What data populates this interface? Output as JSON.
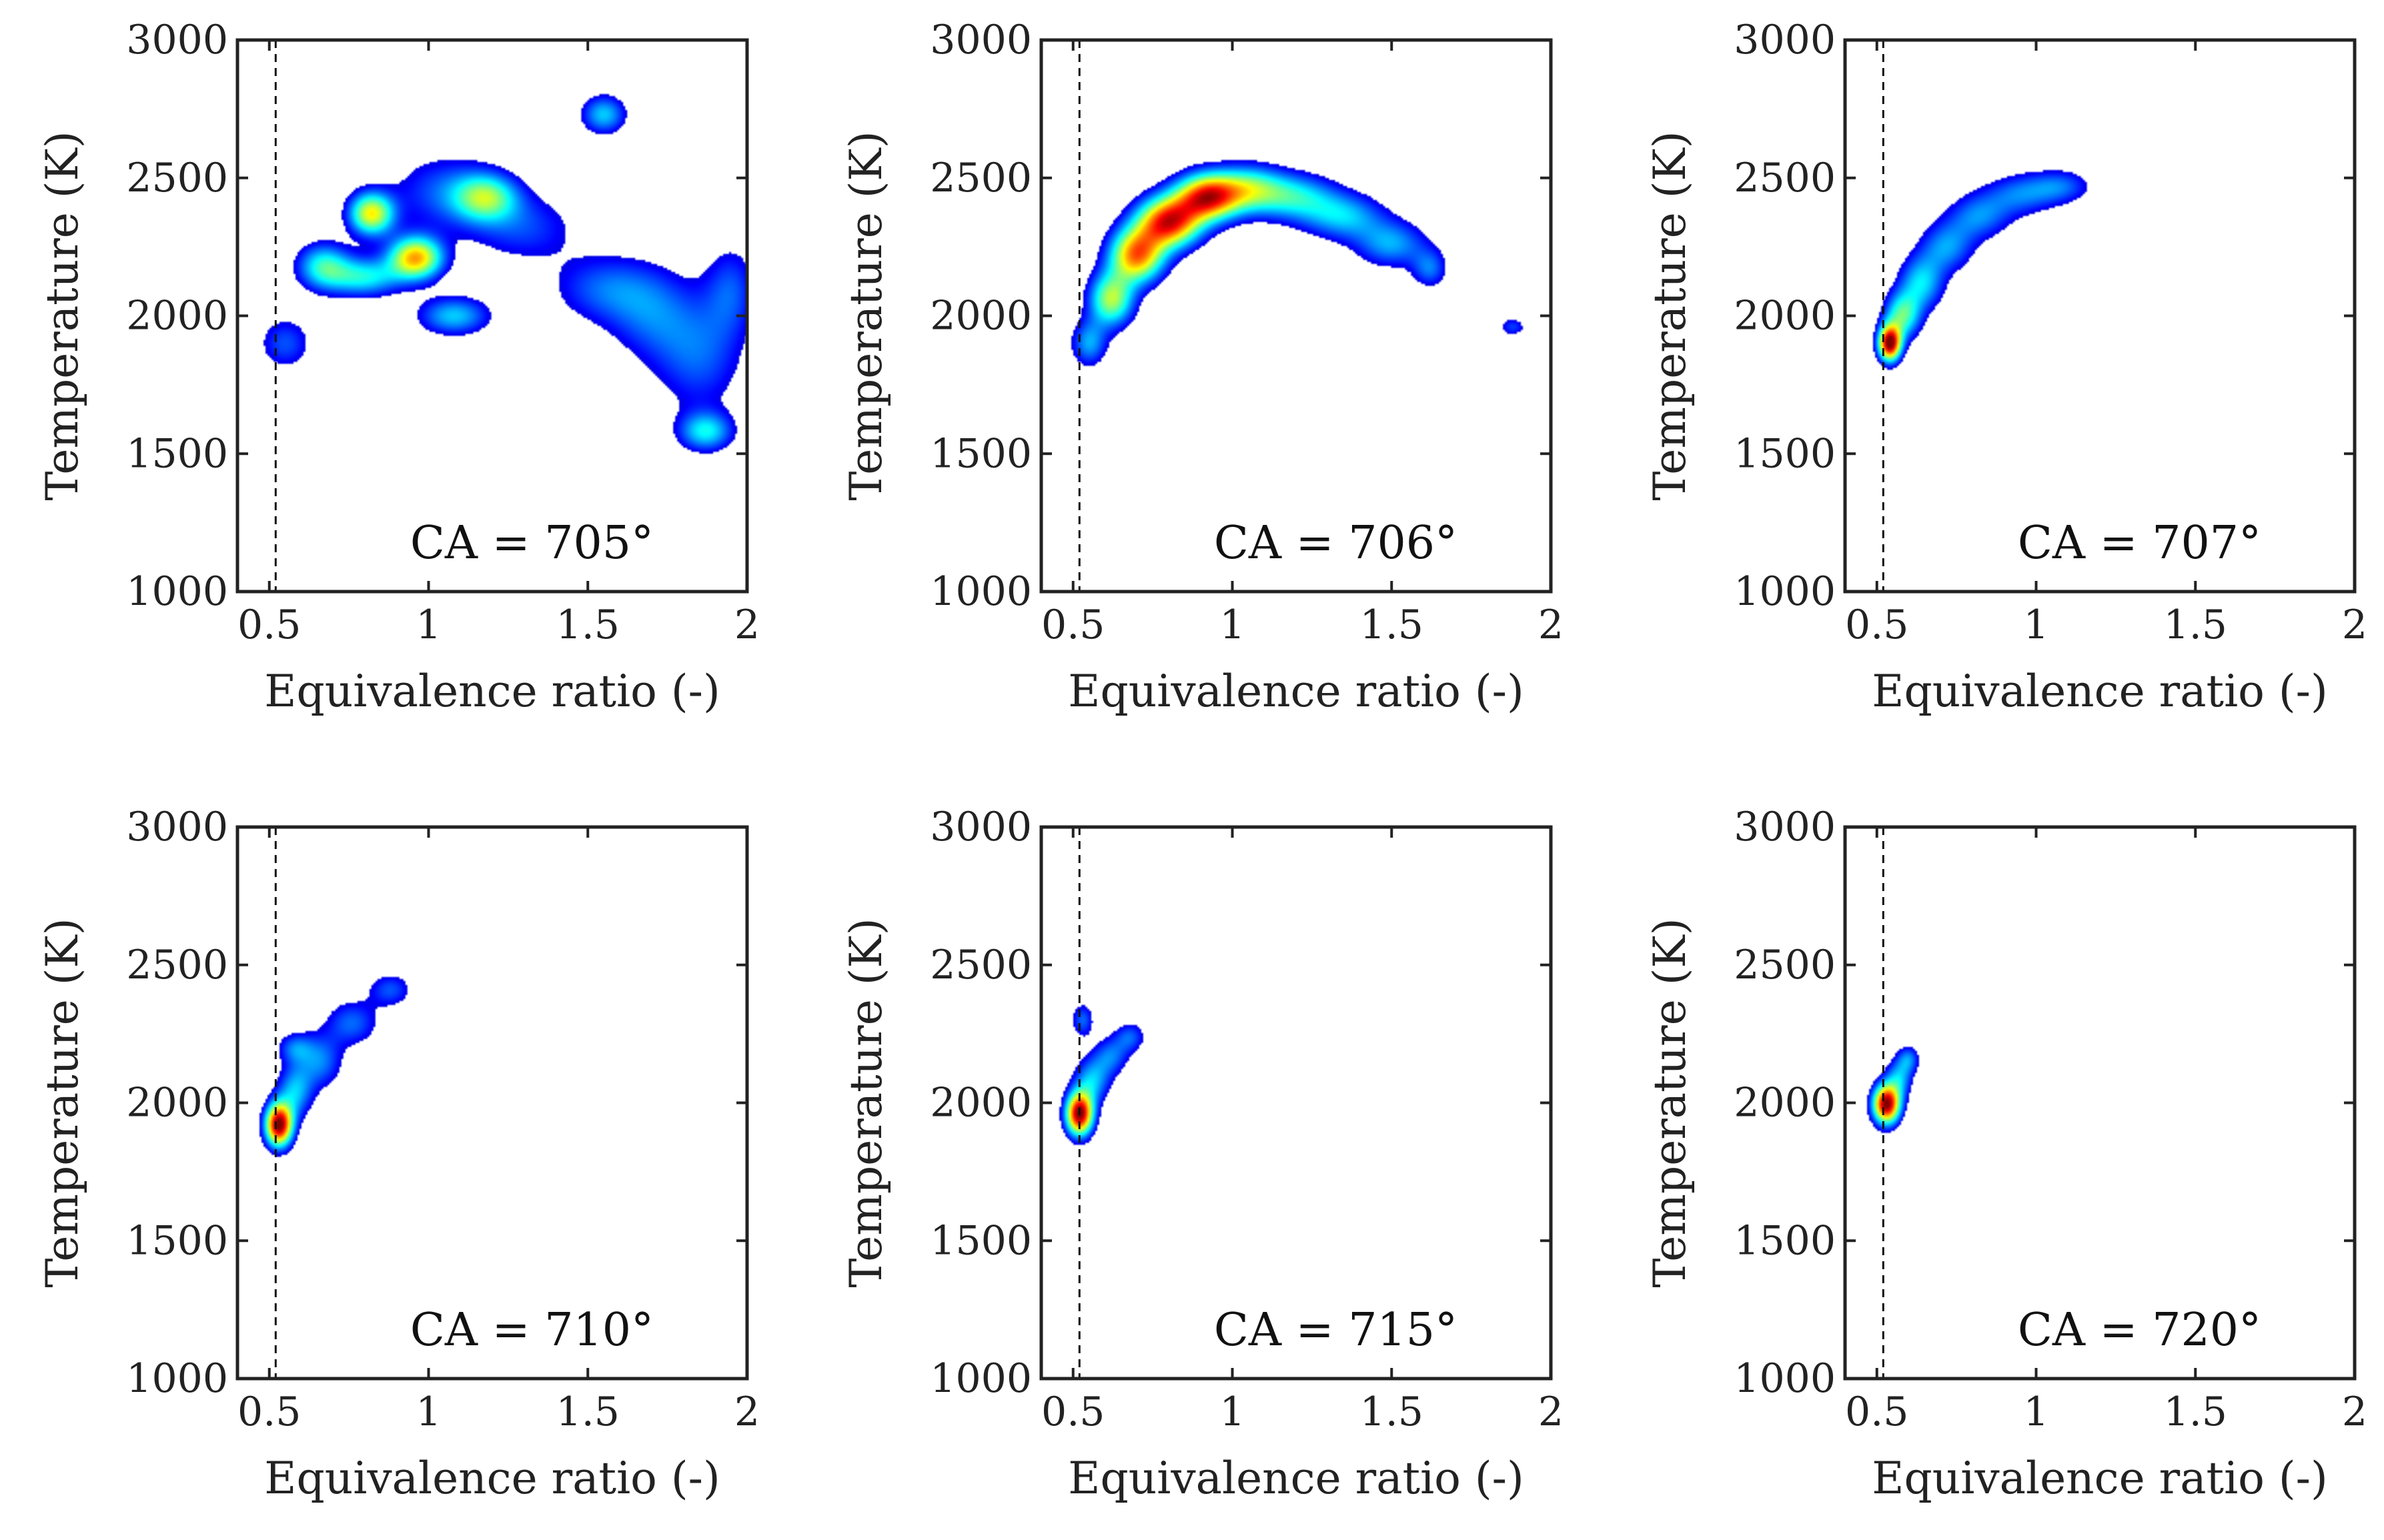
{
  "chart_data": [
    {
      "type": "heatmap",
      "label": "CA = 705°",
      "xlabel": "Equivalence ratio (-)",
      "ylabel": "Temperature (K)",
      "xlim": [
        0.4,
        2
      ],
      "ylim": [
        1000,
        3000
      ],
      "xticks": [
        "0.5",
        "1",
        "1.5",
        "2"
      ],
      "yticks": [
        "1000",
        "1500",
        "2000",
        "2500",
        "3000"
      ],
      "reference_line_x": 0.52,
      "density_blobs": [
        {
          "x": 0.55,
          "y": 1900,
          "sx": 0.06,
          "sy": 70,
          "w": 0.22
        },
        {
          "x": 0.67,
          "y": 2180,
          "sx": 0.06,
          "sy": 60,
          "w": 0.4
        },
        {
          "x": 0.82,
          "y": 2370,
          "sx": 0.05,
          "sy": 55,
          "w": 0.62
        },
        {
          "x": 0.96,
          "y": 2210,
          "sx": 0.06,
          "sy": 55,
          "w": 0.7
        },
        {
          "x": 0.8,
          "y": 2140,
          "sx": 0.08,
          "sy": 50,
          "w": 0.38
        },
        {
          "x": 1.08,
          "y": 2000,
          "sx": 0.08,
          "sy": 50,
          "w": 0.34
        },
        {
          "x": 1.18,
          "y": 2430,
          "sx": 0.07,
          "sy": 60,
          "w": 0.42
        },
        {
          "x": 1.05,
          "y": 2450,
          "sx": 0.12,
          "sy": 100,
          "w": 0.22
        },
        {
          "x": 1.3,
          "y": 2320,
          "sx": 0.12,
          "sy": 90,
          "w": 0.2
        },
        {
          "x": 1.55,
          "y": 2730,
          "sx": 0.05,
          "sy": 50,
          "w": 0.34
        },
        {
          "x": 1.55,
          "y": 2100,
          "sx": 0.12,
          "sy": 90,
          "w": 0.22
        },
        {
          "x": 1.7,
          "y": 2000,
          "sx": 0.1,
          "sy": 120,
          "w": 0.2
        },
        {
          "x": 1.85,
          "y": 1850,
          "sx": 0.1,
          "sy": 150,
          "w": 0.22
        },
        {
          "x": 1.87,
          "y": 1580,
          "sx": 0.06,
          "sy": 50,
          "w": 0.36
        },
        {
          "x": 1.95,
          "y": 2100,
          "sx": 0.06,
          "sy": 120,
          "w": 0.2
        }
      ]
    },
    {
      "type": "heatmap",
      "label": "CA = 706°",
      "xlabel": "Equivalence ratio (-)",
      "ylabel": "Temperature (K)",
      "xlim": [
        0.4,
        2
      ],
      "ylim": [
        1000,
        3000
      ],
      "xticks": [
        "0.5",
        "1",
        "1.5",
        "2"
      ],
      "yticks": [
        "1000",
        "1500",
        "2000",
        "2500",
        "3000"
      ],
      "reference_line_x": 0.52,
      "density_blobs": [
        {
          "x": 0.55,
          "y": 1900,
          "sx": 0.04,
          "sy": 60,
          "w": 0.3
        },
        {
          "x": 0.62,
          "y": 2060,
          "sx": 0.05,
          "sy": 70,
          "w": 0.55
        },
        {
          "x": 0.7,
          "y": 2220,
          "sx": 0.06,
          "sy": 70,
          "w": 0.75
        },
        {
          "x": 0.8,
          "y": 2340,
          "sx": 0.07,
          "sy": 65,
          "w": 0.85
        },
        {
          "x": 0.92,
          "y": 2430,
          "sx": 0.07,
          "sy": 60,
          "w": 0.8
        },
        {
          "x": 1.05,
          "y": 2460,
          "sx": 0.08,
          "sy": 60,
          "w": 0.45
        },
        {
          "x": 1.2,
          "y": 2430,
          "sx": 0.09,
          "sy": 60,
          "w": 0.35
        },
        {
          "x": 1.35,
          "y": 2360,
          "sx": 0.09,
          "sy": 60,
          "w": 0.32
        },
        {
          "x": 1.5,
          "y": 2260,
          "sx": 0.08,
          "sy": 60,
          "w": 0.3
        },
        {
          "x": 1.62,
          "y": 2170,
          "sx": 0.04,
          "sy": 50,
          "w": 0.24
        },
        {
          "x": 1.88,
          "y": 1960,
          "sx": 0.03,
          "sy": 25,
          "w": 0.2
        }
      ]
    },
    {
      "type": "heatmap",
      "label": "CA = 707°",
      "xlabel": "Equivalence ratio (-)",
      "ylabel": "Temperature (K)",
      "xlim": [
        0.4,
        2
      ],
      "ylim": [
        1000,
        3000
      ],
      "xticks": [
        "0.5",
        "1",
        "1.5",
        "2"
      ],
      "yticks": [
        "1000",
        "1500",
        "2000",
        "2500",
        "3000"
      ],
      "reference_line_x": 0.52,
      "density_blobs": [
        {
          "x": 0.54,
          "y": 1900,
          "sx": 0.025,
          "sy": 45,
          "w": 1.0
        },
        {
          "x": 0.58,
          "y": 2000,
          "sx": 0.04,
          "sy": 60,
          "w": 0.45
        },
        {
          "x": 0.64,
          "y": 2120,
          "sx": 0.05,
          "sy": 70,
          "w": 0.35
        },
        {
          "x": 0.72,
          "y": 2250,
          "sx": 0.06,
          "sy": 65,
          "w": 0.28
        },
        {
          "x": 0.82,
          "y": 2360,
          "sx": 0.07,
          "sy": 60,
          "w": 0.26
        },
        {
          "x": 0.95,
          "y": 2440,
          "sx": 0.08,
          "sy": 55,
          "w": 0.24
        },
        {
          "x": 1.08,
          "y": 2470,
          "sx": 0.07,
          "sy": 45,
          "w": 0.22
        }
      ]
    },
    {
      "type": "heatmap",
      "label": "CA = 710°",
      "xlabel": "Equivalence ratio (-)",
      "ylabel": "Temperature (K)",
      "xlim": [
        0.4,
        2
      ],
      "ylim": [
        1000,
        3000
      ],
      "xticks": [
        "0.5",
        "1",
        "1.5",
        "2"
      ],
      "yticks": [
        "1000",
        "1500",
        "2000",
        "2500",
        "3000"
      ],
      "reference_line_x": 0.52,
      "density_blobs": [
        {
          "x": 0.53,
          "y": 1920,
          "sx": 0.03,
          "sy": 55,
          "w": 1.0
        },
        {
          "x": 0.58,
          "y": 2040,
          "sx": 0.04,
          "sy": 70,
          "w": 0.32
        },
        {
          "x": 0.58,
          "y": 2200,
          "sx": 0.04,
          "sy": 40,
          "w": 0.22
        },
        {
          "x": 0.66,
          "y": 2150,
          "sx": 0.05,
          "sy": 70,
          "w": 0.26
        },
        {
          "x": 0.76,
          "y": 2290,
          "sx": 0.06,
          "sy": 60,
          "w": 0.24
        },
        {
          "x": 0.88,
          "y": 2410,
          "sx": 0.05,
          "sy": 45,
          "w": 0.22
        }
      ]
    },
    {
      "type": "heatmap",
      "label": "CA = 715°",
      "xlabel": "Equivalence ratio (-)",
      "ylabel": "Temperature (K)",
      "xlim": [
        0.4,
        2
      ],
      "ylim": [
        1000,
        3000
      ],
      "xticks": [
        "0.5",
        "1",
        "1.5",
        "2"
      ],
      "yticks": [
        "1000",
        "1500",
        "2000",
        "2500",
        "3000"
      ],
      "reference_line_x": 0.52,
      "density_blobs": [
        {
          "x": 0.52,
          "y": 1960,
          "sx": 0.03,
          "sy": 55,
          "w": 1.0
        },
        {
          "x": 0.56,
          "y": 2080,
          "sx": 0.04,
          "sy": 60,
          "w": 0.32
        },
        {
          "x": 0.53,
          "y": 2300,
          "sx": 0.025,
          "sy": 45,
          "w": 0.24
        },
        {
          "x": 0.62,
          "y": 2170,
          "sx": 0.04,
          "sy": 50,
          "w": 0.24
        },
        {
          "x": 0.68,
          "y": 2240,
          "sx": 0.035,
          "sy": 40,
          "w": 0.22
        }
      ]
    },
    {
      "type": "heatmap",
      "label": "CA = 720°",
      "xlabel": "Equivalence ratio (-)",
      "ylabel": "Temperature (K)",
      "xlim": [
        0.4,
        2
      ],
      "ylim": [
        1000,
        3000
      ],
      "xticks": [
        "0.5",
        "1",
        "1.5",
        "2"
      ],
      "yticks": [
        "1000",
        "1500",
        "2000",
        "2500",
        "3000"
      ],
      "reference_line_x": 0.52,
      "density_blobs": [
        {
          "x": 0.53,
          "y": 1995,
          "sx": 0.03,
          "sy": 50,
          "w": 1.0
        },
        {
          "x": 0.57,
          "y": 2090,
          "sx": 0.03,
          "sy": 50,
          "w": 0.3
        },
        {
          "x": 0.6,
          "y": 2160,
          "sx": 0.025,
          "sy": 35,
          "w": 0.24
        }
      ]
    }
  ]
}
